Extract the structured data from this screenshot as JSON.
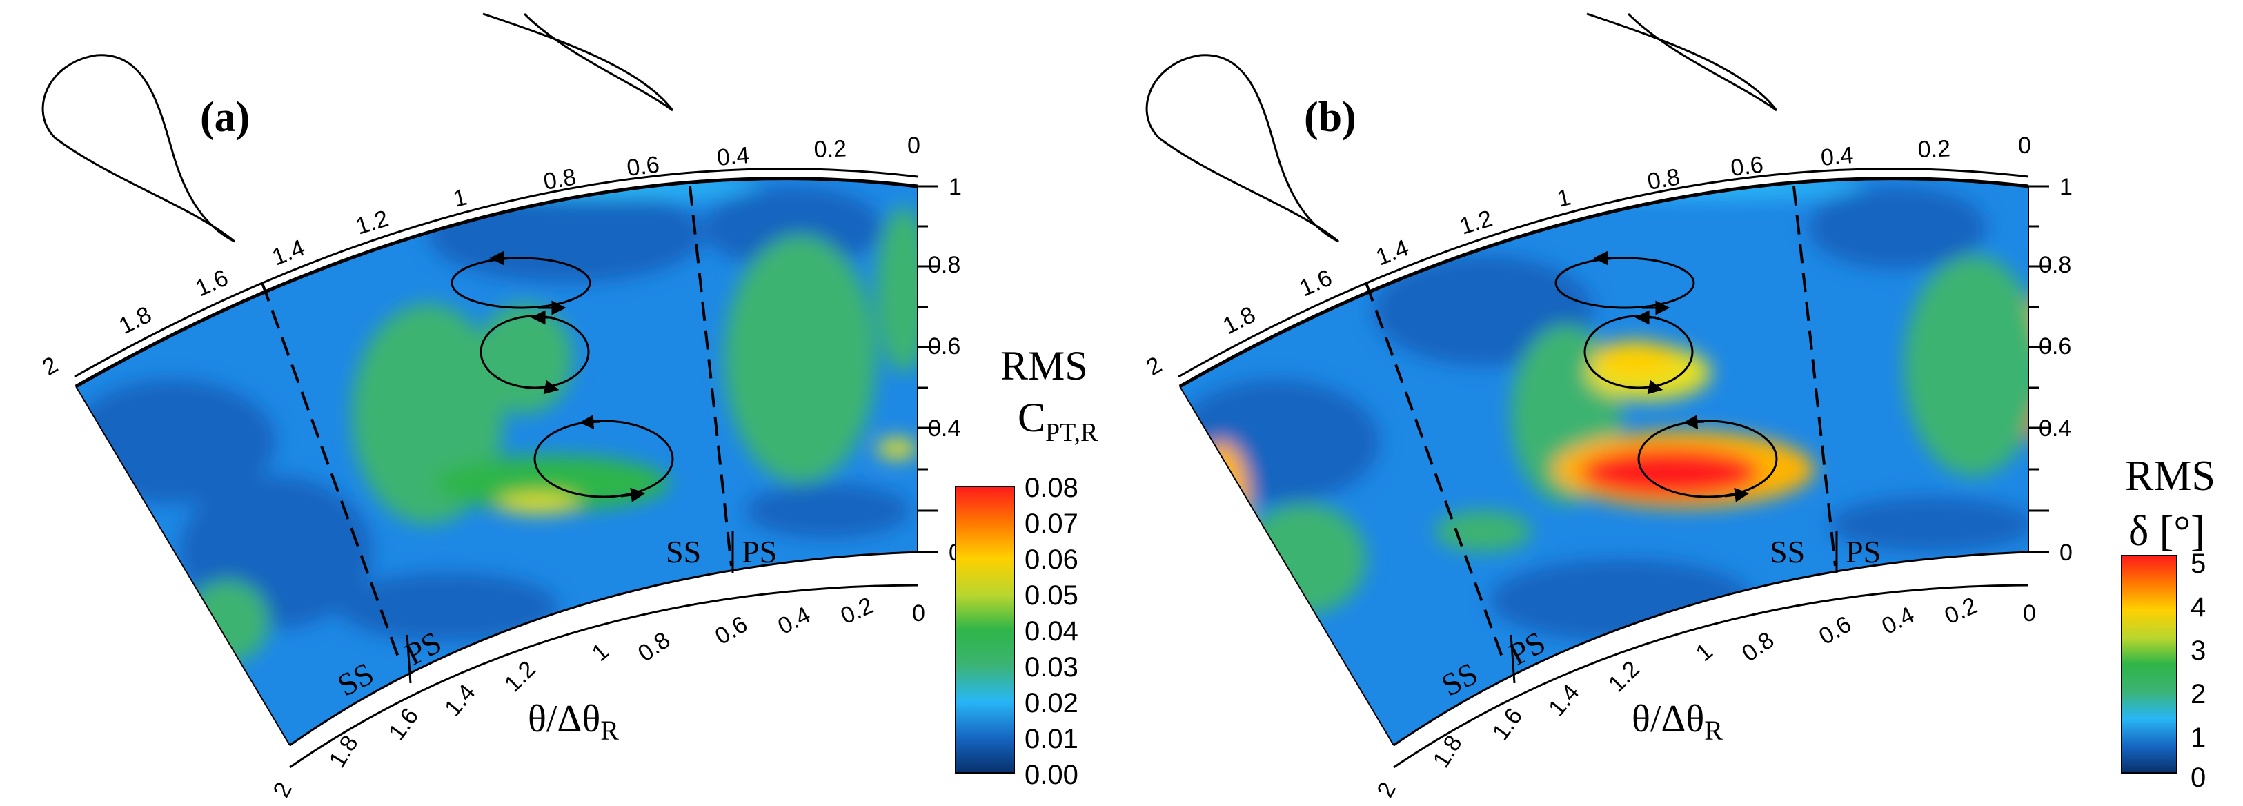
{
  "panels": [
    {
      "id": "a",
      "label": "(a)",
      "circumferential_ticks_top": [
        "2",
        "1.8",
        "1.6",
        "1.4",
        "1.2",
        "1",
        "0.8",
        "0.6",
        "0.4",
        "0.2",
        "0"
      ],
      "circumferential_ticks_bottom": [
        "2",
        "1.8",
        "1.6",
        "1.4",
        "1.2",
        "1",
        "0.8",
        "0.6",
        "0.4",
        "0.2",
        "0"
      ],
      "radial_ticks": [
        "0",
        "0.4",
        "0.6",
        "0.8",
        "1"
      ],
      "axis_title_main": "θ/Δθ",
      "axis_title_sub": "R",
      "ss_label": "SS",
      "ps_label": "PS",
      "colorbar_title_line1": "RMS",
      "colorbar_title_main": "C",
      "colorbar_title_sub": "PT,R",
      "colorbar_ticks": [
        "0.08",
        "0.07",
        "0.06",
        "0.05",
        "0.04",
        "0.03",
        "0.02",
        "0.01",
        "0.00"
      ]
    },
    {
      "id": "b",
      "label": "(b)",
      "circumferential_ticks_top": [
        "2",
        "1.8",
        "1.6",
        "1.4",
        "1.2",
        "1",
        "0.8",
        "0.6",
        "0.4",
        "0.2",
        "0"
      ],
      "circumferential_ticks_bottom": [
        "2",
        "1.8",
        "1.6",
        "1.4",
        "1.2",
        "1",
        "0.8",
        "0.6",
        "0.4",
        "0.2",
        "0"
      ],
      "radial_ticks": [
        "0",
        "0.4",
        "0.6",
        "0.8",
        "1"
      ],
      "axis_title_main": "θ/Δθ",
      "axis_title_sub": "R",
      "ss_label": "SS",
      "ps_label": "PS",
      "colorbar_title_line1": "RMS",
      "colorbar_title_main": "δ [°]",
      "colorbar_ticks": [
        "5",
        "4",
        "3",
        "2",
        "1",
        "0"
      ]
    }
  ],
  "colormap": [
    "#08306b",
    "#1565c0",
    "#1e88e5",
    "#29b6f6",
    "#4fd0e0",
    "#3cb371",
    "#2fb548",
    "#7cc242",
    "#e6e022",
    "#ffb400",
    "#ff6a00",
    "#ff1a1a"
  ]
}
